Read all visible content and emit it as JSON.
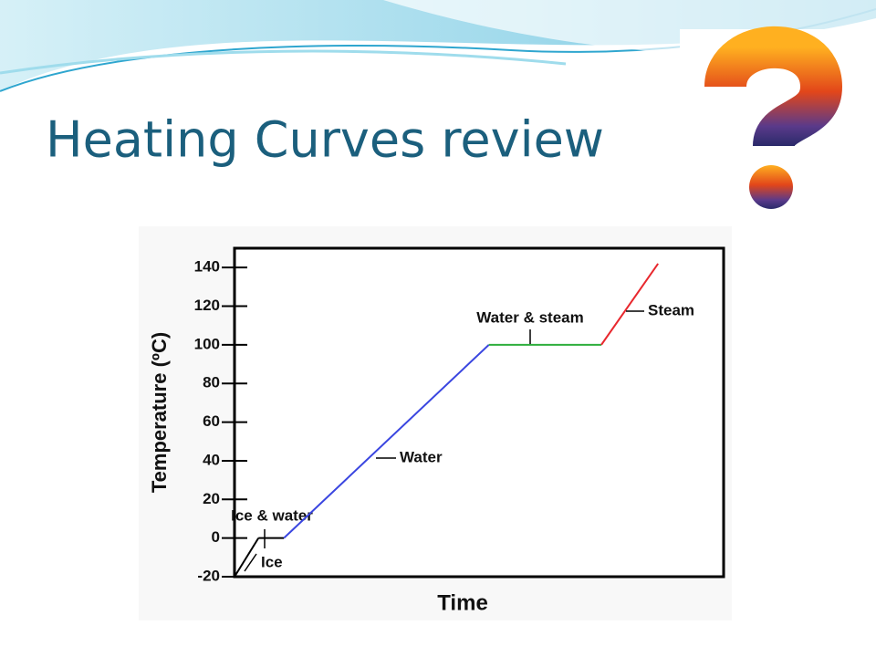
{
  "title": "Heating Curves review",
  "chart_data": {
    "type": "line",
    "xlabel": "Time",
    "ylabel": "Temperature (ºC)",
    "xlim": [
      0,
      100
    ],
    "ylim": [
      -20,
      150
    ],
    "yticks": [
      -20,
      0,
      20,
      40,
      60,
      80,
      100,
      120,
      140
    ],
    "series": [
      {
        "name": "Ice",
        "color": "#000000",
        "x": [
          0,
          4.9
        ],
        "values": [
          -20,
          0
        ]
      },
      {
        "name": "Ice & water",
        "color": "#000000",
        "x": [
          4.9,
          10.1
        ],
        "values": [
          0,
          0
        ]
      },
      {
        "name": "Water",
        "color": "#3a46e0",
        "x": [
          10.1,
          52
        ],
        "values": [
          0,
          100
        ]
      },
      {
        "name": "Water & steam",
        "color": "#2eae3c",
        "x": [
          52,
          75
        ],
        "values": [
          100,
          100
        ]
      },
      {
        "name": "Steam",
        "color": "#e8282e",
        "x": [
          75,
          86.6
        ],
        "values": [
          100,
          142
        ]
      }
    ]
  }
}
